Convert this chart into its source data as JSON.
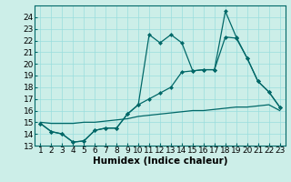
{
  "xlabel": "Humidex (Indice chaleur)",
  "bg_color": "#cceee8",
  "line_color": "#006868",
  "grid_color": "#99dddd",
  "x_values": [
    1,
    2,
    3,
    4,
    5,
    6,
    7,
    8,
    9,
    10,
    11,
    12,
    13,
    14,
    15,
    16,
    17,
    18,
    19,
    20,
    21,
    22,
    23
  ],
  "line1": [
    14.9,
    14.2,
    14.0,
    13.3,
    13.4,
    14.3,
    14.5,
    14.5,
    15.7,
    16.5,
    17.0,
    17.5,
    18.0,
    19.3,
    19.4,
    19.5,
    19.5,
    22.3,
    22.2,
    20.5,
    18.5,
    17.6,
    16.3
  ],
  "line2": [
    14.9,
    14.2,
    14.0,
    13.3,
    13.4,
    14.3,
    14.5,
    14.5,
    15.7,
    16.5,
    22.5,
    21.8,
    22.5,
    21.8,
    19.4,
    19.5,
    19.5,
    24.5,
    22.3,
    20.5,
    18.5,
    17.6,
    16.3
  ],
  "line3": [
    15.0,
    14.9,
    14.9,
    14.9,
    15.0,
    15.0,
    15.1,
    15.2,
    15.3,
    15.5,
    15.6,
    15.7,
    15.8,
    15.9,
    16.0,
    16.0,
    16.1,
    16.2,
    16.3,
    16.3,
    16.4,
    16.5,
    16.0
  ],
  "ylim": [
    13,
    25
  ],
  "xlim": [
    0.5,
    23.5
  ],
  "yticks": [
    13,
    14,
    15,
    16,
    17,
    18,
    19,
    20,
    21,
    22,
    23,
    24
  ],
  "xticks": [
    1,
    2,
    3,
    4,
    5,
    6,
    7,
    8,
    9,
    10,
    11,
    12,
    13,
    14,
    15,
    16,
    17,
    18,
    19,
    20,
    21,
    22,
    23
  ],
  "markersize": 2.5,
  "linewidth": 0.9,
  "fontsize_tick": 6.5,
  "fontsize_label": 7.5
}
